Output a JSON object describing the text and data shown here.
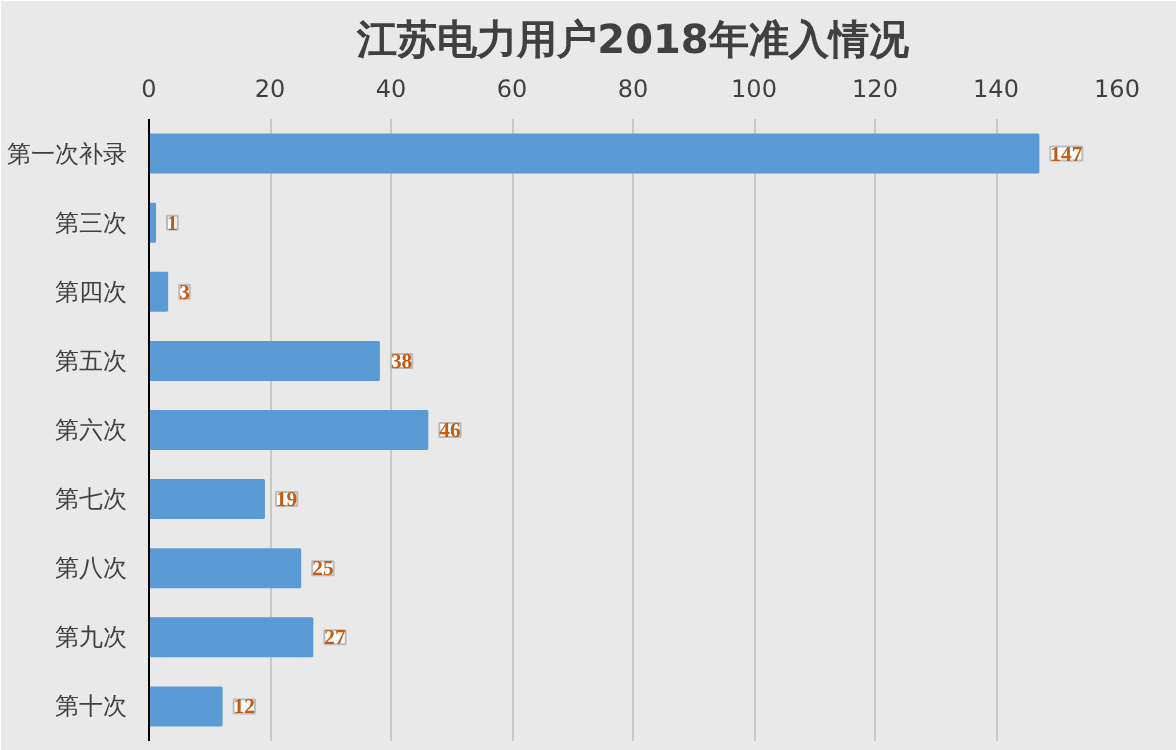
{
  "chart_data": {
    "type": "bar",
    "orientation": "horizontal",
    "title": "江苏电力用户2018年准入情况",
    "categories": [
      "第一次补录",
      "第三次",
      "第四次",
      "第五次",
      "第六次",
      "第七次",
      "第八次",
      "第九次",
      "第十次"
    ],
    "values": [
      147,
      1,
      3,
      38,
      46,
      19,
      25,
      27,
      12
    ],
    "color": "#5b9bd5",
    "xlim": [
      0,
      160
    ],
    "xticks": [
      0,
      20,
      40,
      60,
      80,
      100,
      120,
      140,
      160
    ],
    "grid": "x",
    "data_labels": true
  }
}
